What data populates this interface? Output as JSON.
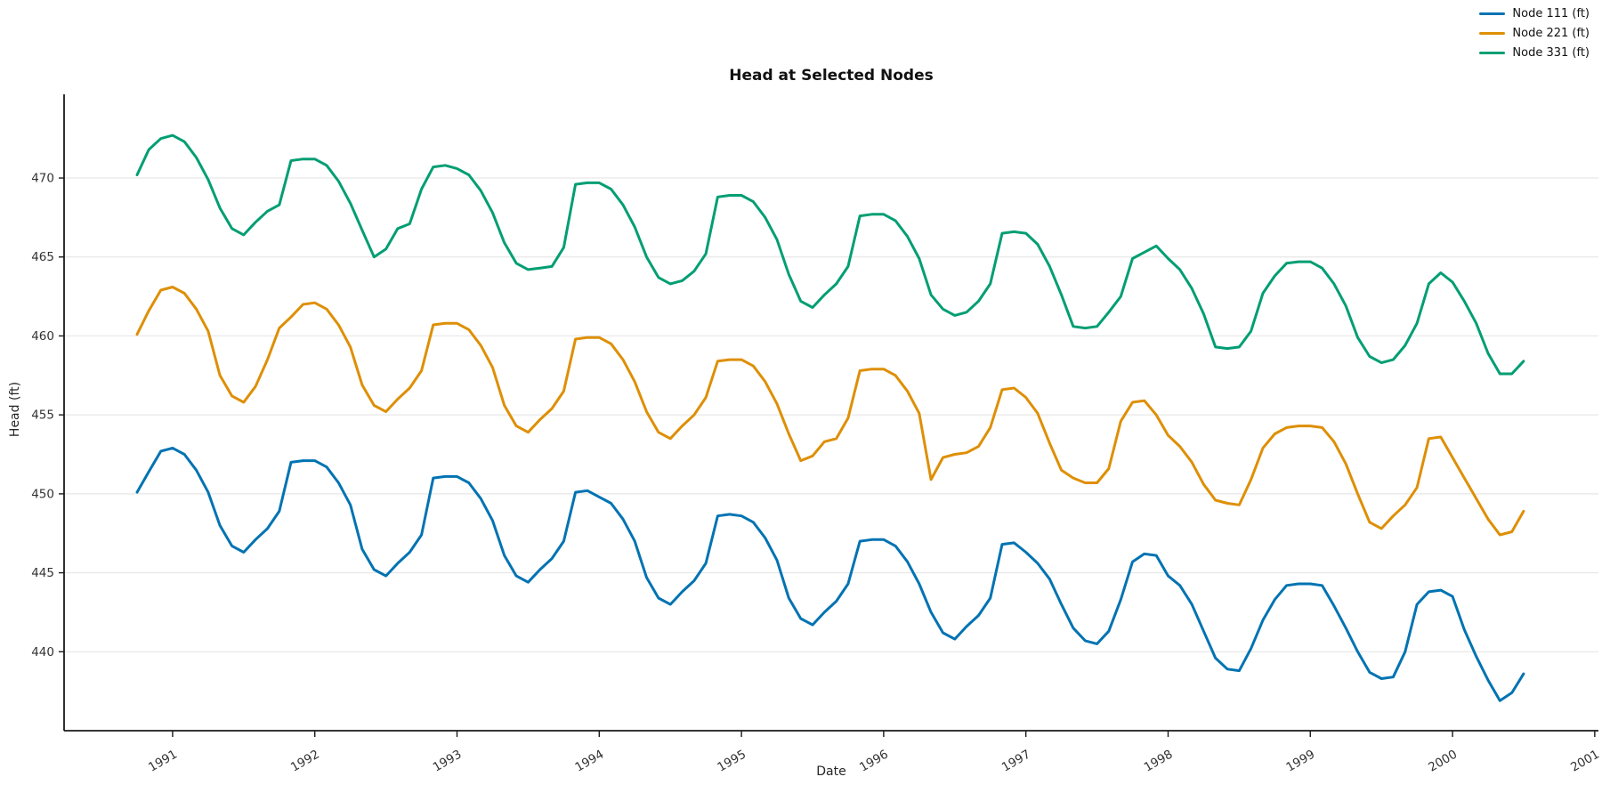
{
  "chart_data": {
    "type": "line",
    "title": "Head at Selected Nodes",
    "xlabel": "Date",
    "ylabel": "Head (ft)",
    "grid": "horizontal-only",
    "legend_position": "top-right-outside",
    "background": "#ffffff",
    "gridline_color": "#e7e7e7",
    "spine_color": "#1a1a1a",
    "tick_label_color": "#333333",
    "xlim": [
      1990.237,
      2001.026
    ],
    "ylim": [
      435.0,
      475.3
    ],
    "yticks": [
      440,
      445,
      450,
      455,
      460,
      465,
      470
    ],
    "xticks": [
      1991,
      1992,
      1993,
      1994,
      1995,
      1996,
      1997,
      1998,
      1999,
      2000,
      2001
    ],
    "x_tick_rotation_deg": 30,
    "x_format": "decimal years, monthly samples from Oct 1990 to Jul 2000",
    "x": [
      1990.75,
      1990.833,
      1990.917,
      1991,
      1991.083,
      1991.167,
      1991.25,
      1991.333,
      1991.417,
      1991.5,
      1991.583,
      1991.667,
      1991.75,
      1991.833,
      1991.917,
      1992,
      1992.083,
      1992.167,
      1992.25,
      1992.333,
      1992.417,
      1992.5,
      1992.583,
      1992.667,
      1992.75,
      1992.833,
      1992.917,
      1993,
      1993.083,
      1993.167,
      1993.25,
      1993.333,
      1993.417,
      1993.5,
      1993.583,
      1993.667,
      1993.75,
      1993.833,
      1993.917,
      1994,
      1994.083,
      1994.167,
      1994.25,
      1994.333,
      1994.417,
      1994.5,
      1994.583,
      1994.667,
      1994.75,
      1994.833,
      1994.917,
      1995,
      1995.083,
      1995.167,
      1995.25,
      1995.333,
      1995.417,
      1995.5,
      1995.583,
      1995.667,
      1995.75,
      1995.833,
      1995.917,
      1996,
      1996.083,
      1996.167,
      1996.25,
      1996.333,
      1996.417,
      1996.5,
      1996.583,
      1996.667,
      1996.75,
      1996.833,
      1996.917,
      1997,
      1997.083,
      1997.167,
      1997.25,
      1997.333,
      1997.417,
      1997.5,
      1997.583,
      1997.667,
      1997.75,
      1997.833,
      1997.917,
      1998,
      1998.083,
      1998.167,
      1998.25,
      1998.333,
      1998.417,
      1998.5,
      1998.583,
      1998.667,
      1998.75,
      1998.833,
      1998.917,
      1999,
      1999.083,
      1999.167,
      1999.25,
      1999.333,
      1999.417,
      1999.5,
      1999.583,
      1999.667,
      1999.75,
      1999.833,
      1999.917,
      2000,
      2000.083,
      2000.167,
      2000.25,
      2000.333,
      2000.417,
      2000.5
    ],
    "series": [
      {
        "name": "Node 111 (ft)",
        "color": "#0173b2",
        "values": [
          450.1,
          451.4,
          452.7,
          452.9,
          452.5,
          451.5,
          450.1,
          448.0,
          446.7,
          446.3,
          447.1,
          447.8,
          448.9,
          452.0,
          452.1,
          452.1,
          451.7,
          450.7,
          449.3,
          446.5,
          445.2,
          444.8,
          445.6,
          446.3,
          447.4,
          451.0,
          451.1,
          451.1,
          450.7,
          449.7,
          448.3,
          446.1,
          444.8,
          444.4,
          445.2,
          445.9,
          447.0,
          450.1,
          450.2,
          449.8,
          449.4,
          448.4,
          447.0,
          444.7,
          443.4,
          443.0,
          443.8,
          444.5,
          445.6,
          448.6,
          448.7,
          448.6,
          448.2,
          447.2,
          445.8,
          443.4,
          442.1,
          441.7,
          442.5,
          443.2,
          444.3,
          447.0,
          447.1,
          447.1,
          446.7,
          445.7,
          444.3,
          442.5,
          441.2,
          440.8,
          441.6,
          442.3,
          443.4,
          446.8,
          446.9,
          446.3,
          445.6,
          444.6,
          443.0,
          441.5,
          440.7,
          440.5,
          441.3,
          443.3,
          445.7,
          446.2,
          446.1,
          444.8,
          444.2,
          443.0,
          441.3,
          439.6,
          438.9,
          438.8,
          440.2,
          442.0,
          443.3,
          444.2,
          444.3,
          444.3,
          444.2,
          442.9,
          441.5,
          440.0,
          438.7,
          438.3,
          438.4,
          440.0,
          443.0,
          443.8,
          443.9,
          443.5,
          441.4,
          439.7,
          438.2,
          436.9,
          437.4,
          438.6
        ]
      },
      {
        "name": "Node 221 (ft)",
        "color": "#de8f05",
        "values": [
          460.1,
          461.6,
          462.9,
          463.1,
          462.7,
          461.7,
          460.3,
          457.5,
          456.2,
          455.8,
          456.8,
          458.5,
          460.5,
          461.2,
          462.0,
          462.1,
          461.7,
          460.7,
          459.3,
          456.9,
          455.6,
          455.2,
          456.0,
          456.7,
          457.8,
          460.7,
          460.8,
          460.8,
          460.4,
          459.4,
          458.0,
          455.6,
          454.3,
          453.9,
          454.7,
          455.4,
          456.5,
          459.8,
          459.9,
          459.9,
          459.5,
          458.5,
          457.1,
          455.2,
          453.9,
          453.5,
          454.3,
          455.0,
          456.1,
          458.4,
          458.5,
          458.5,
          458.1,
          457.1,
          455.7,
          453.8,
          452.1,
          452.4,
          453.3,
          453.5,
          454.8,
          457.8,
          457.9,
          457.9,
          457.5,
          456.5,
          455.1,
          450.9,
          452.3,
          452.5,
          452.6,
          453.0,
          454.2,
          456.6,
          456.7,
          456.1,
          455.1,
          453.2,
          451.5,
          451.0,
          450.7,
          450.7,
          451.6,
          454.6,
          455.8,
          455.9,
          455.0,
          453.7,
          453.0,
          452.0,
          450.6,
          449.6,
          449.4,
          449.3,
          450.9,
          452.9,
          453.8,
          454.2,
          454.3,
          454.3,
          454.2,
          453.3,
          451.9,
          450.0,
          448.2,
          447.8,
          448.6,
          449.3,
          450.4,
          453.5,
          453.6,
          452.3,
          451.0,
          449.7,
          448.4,
          447.4,
          447.6,
          448.9
        ]
      },
      {
        "name": "Node 331 (ft)",
        "color": "#029e73",
        "values": [
          470.2,
          471.8,
          472.5,
          472.7,
          472.3,
          471.3,
          469.9,
          468.1,
          466.8,
          466.4,
          467.2,
          467.9,
          468.3,
          471.1,
          471.2,
          471.2,
          470.8,
          469.8,
          468.4,
          466.7,
          465.0,
          465.5,
          466.8,
          467.1,
          469.3,
          470.7,
          470.8,
          470.6,
          470.2,
          469.2,
          467.8,
          465.9,
          464.6,
          464.2,
          464.3,
          464.4,
          465.6,
          469.6,
          469.7,
          469.7,
          469.3,
          468.3,
          466.9,
          465.0,
          463.7,
          463.3,
          463.5,
          464.1,
          465.2,
          468.8,
          468.9,
          468.9,
          468.5,
          467.5,
          466.1,
          463.9,
          462.2,
          461.8,
          462.6,
          463.3,
          464.4,
          467.6,
          467.7,
          467.7,
          467.3,
          466.3,
          464.9,
          462.6,
          461.7,
          461.3,
          461.5,
          462.2,
          463.3,
          466.5,
          466.6,
          466.5,
          465.8,
          464.4,
          462.6,
          460.6,
          460.5,
          460.6,
          461.5,
          462.5,
          464.9,
          465.3,
          465.7,
          464.9,
          464.2,
          463.0,
          461.4,
          459.3,
          459.2,
          459.3,
          460.3,
          462.7,
          463.8,
          464.6,
          464.7,
          464.7,
          464.3,
          463.3,
          461.9,
          459.9,
          458.7,
          458.3,
          458.5,
          459.4,
          460.8,
          463.3,
          464.0,
          463.4,
          462.2,
          460.8,
          458.9,
          457.6,
          457.6,
          458.4
        ]
      }
    ]
  }
}
